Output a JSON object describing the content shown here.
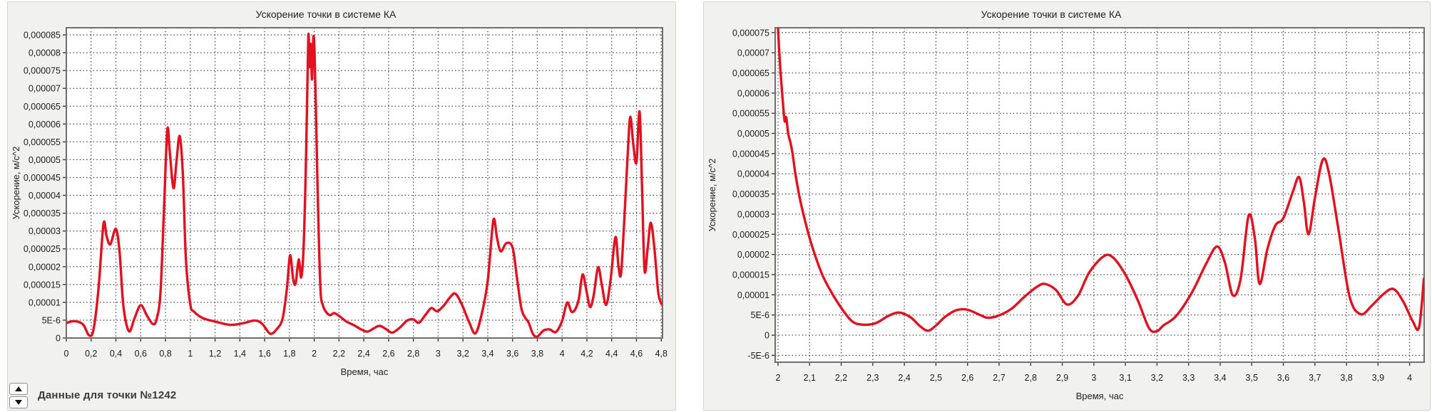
{
  "left_panel": {
    "point_label": "Данные для точки №1242"
  },
  "chart_data": [
    {
      "type": "line",
      "title": "Ускорение точки в системе КА",
      "xlabel": "Время, час",
      "ylabel": "Ускорение, м/с^2",
      "grid": "dotted, on",
      "legend": "none",
      "line_color": "#e3101f",
      "grid_color": "#474747",
      "plot_border_color": "#6f6f6f",
      "tick_color": "#3a3a3a",
      "text_color": "#1d1d1d",
      "plot_bg": "#ffffff",
      "note": "y values below are in units of 1e-6 m/s^2; x in hours",
      "xlim": [
        0,
        4.81
      ],
      "ylim": [
        0,
        87
      ],
      "x_tick_values": [
        0,
        0.2,
        0.4,
        0.6,
        0.8,
        1,
        1.2,
        1.4,
        1.6,
        1.8,
        2,
        2.2,
        2.4,
        2.6,
        2.8,
        3,
        3.2,
        3.4,
        3.6,
        3.8,
        4,
        4.2,
        4.4,
        4.6,
        4.8
      ],
      "x_tick_labels": [
        "0",
        "0,2",
        "0,4",
        "0,6",
        "0,8",
        "1",
        "1,2",
        "1,4",
        "1,6",
        "1,8",
        "2",
        "2,2",
        "2,4",
        "2,6",
        "2,8",
        "3",
        "3,2",
        "3,4",
        "3,6",
        "3,8",
        "4",
        "4,2",
        "4,4",
        "4,6",
        "4,8"
      ],
      "y_tick_values": [
        0,
        5,
        10,
        15,
        20,
        25,
        30,
        35,
        40,
        45,
        50,
        55,
        60,
        65,
        70,
        75,
        80,
        85
      ],
      "y_tick_labels": [
        "0",
        "5E-6",
        "0,00001",
        "0,000015",
        "0,00002",
        "0,000025",
        "0,00003",
        "0,000035",
        "0,00004",
        "0,000045",
        "0,00005",
        "0,000055",
        "0,00006",
        "0,000065",
        "0,00007",
        "0,000075",
        "0,00008",
        "0,000085"
      ],
      "layout": {
        "margins": {
          "l": 82,
          "t": 36,
          "r": 18,
          "b": 101
        }
      },
      "points": [
        [
          0,
          4.2
        ],
        [
          0.05,
          4.7
        ],
        [
          0.1,
          4.5
        ],
        [
          0.14,
          3.6
        ],
        [
          0.185,
          0.7
        ],
        [
          0.22,
          2.5
        ],
        [
          0.26,
          14
        ],
        [
          0.3,
          32
        ],
        [
          0.325,
          28.5
        ],
        [
          0.355,
          26.3
        ],
        [
          0.4,
          30.6
        ],
        [
          0.43,
          24
        ],
        [
          0.46,
          9
        ],
        [
          0.505,
          1.9
        ],
        [
          0.55,
          5.5
        ],
        [
          0.6,
          9.2
        ],
        [
          0.65,
          6.3
        ],
        [
          0.7,
          3.9
        ],
        [
          0.73,
          5.5
        ],
        [
          0.76,
          13
        ],
        [
          0.79,
          38
        ],
        [
          0.815,
          58.5
        ],
        [
          0.835,
          52
        ],
        [
          0.865,
          42
        ],
        [
          0.89,
          50
        ],
        [
          0.915,
          56.6
        ],
        [
          0.94,
          46
        ],
        [
          0.965,
          22
        ],
        [
          1.0,
          9.5
        ],
        [
          1.03,
          7.4
        ],
        [
          1.1,
          5.6
        ],
        [
          1.2,
          4.6
        ],
        [
          1.32,
          3.7
        ],
        [
          1.42,
          4.1
        ],
        [
          1.52,
          4.9
        ],
        [
          1.58,
          4.0
        ],
        [
          1.645,
          1.2
        ],
        [
          1.7,
          2.6
        ],
        [
          1.745,
          5.5
        ],
        [
          1.78,
          14
        ],
        [
          1.805,
          23.2
        ],
        [
          1.83,
          16.5
        ],
        [
          1.85,
          15.3
        ],
        [
          1.875,
          22
        ],
        [
          1.895,
          17
        ],
        [
          1.915,
          26
        ],
        [
          1.935,
          52
        ],
        [
          1.952,
          84.5
        ],
        [
          1.962,
          76
        ],
        [
          1.972,
          82.5
        ],
        [
          1.982,
          72.5
        ],
        [
          1.993,
          84.3
        ],
        [
          2.003,
          80
        ],
        [
          2.015,
          62
        ],
        [
          2.03,
          38
        ],
        [
          2.05,
          14
        ],
        [
          2.07,
          9.2
        ],
        [
          2.1,
          7.1
        ],
        [
          2.13,
          6.4
        ],
        [
          2.16,
          7.0
        ],
        [
          2.2,
          6.2
        ],
        [
          2.26,
          4.6
        ],
        [
          2.32,
          3.6
        ],
        [
          2.38,
          2.4
        ],
        [
          2.43,
          1.8
        ],
        [
          2.49,
          2.9
        ],
        [
          2.53,
          3.4
        ],
        [
          2.58,
          2.5
        ],
        [
          2.63,
          1.5
        ],
        [
          2.69,
          2.9
        ],
        [
          2.75,
          4.9
        ],
        [
          2.8,
          5.2
        ],
        [
          2.845,
          4.3
        ],
        [
          2.9,
          6.6
        ],
        [
          2.945,
          8.4
        ],
        [
          2.99,
          7.5
        ],
        [
          3.04,
          8.9
        ],
        [
          3.1,
          11.6
        ],
        [
          3.14,
          12.4
        ],
        [
          3.19,
          9.5
        ],
        [
          3.25,
          4.4
        ],
        [
          3.3,
          1.3
        ],
        [
          3.35,
          6.5
        ],
        [
          3.4,
          16
        ],
        [
          3.445,
          33
        ],
        [
          3.475,
          28
        ],
        [
          3.505,
          24.3
        ],
        [
          3.55,
          26.6
        ],
        [
          3.6,
          25.4
        ],
        [
          3.635,
          17
        ],
        [
          3.67,
          8.5
        ],
        [
          3.7,
          5.8
        ],
        [
          3.73,
          4.3
        ],
        [
          3.765,
          1.1
        ],
        [
          3.8,
          0.4
        ],
        [
          3.85,
          2.1
        ],
        [
          3.9,
          2.4
        ],
        [
          3.95,
          1.7
        ],
        [
          4.0,
          4.8
        ],
        [
          4.04,
          9.9
        ],
        [
          4.075,
          7.4
        ],
        [
          4.105,
          8.0
        ],
        [
          4.135,
          11
        ],
        [
          4.165,
          17.8
        ],
        [
          4.195,
          13.5
        ],
        [
          4.225,
          8.7
        ],
        [
          4.255,
          12
        ],
        [
          4.29,
          19.8
        ],
        [
          4.32,
          15
        ],
        [
          4.355,
          9.3
        ],
        [
          4.39,
          16
        ],
        [
          4.43,
          28.3
        ],
        [
          4.455,
          20
        ],
        [
          4.475,
          18
        ],
        [
          4.5,
          32
        ],
        [
          4.53,
          52
        ],
        [
          4.55,
          62
        ],
        [
          4.575,
          54
        ],
        [
          4.6,
          49.3
        ],
        [
          4.625,
          63.5
        ],
        [
          4.645,
          42
        ],
        [
          4.665,
          19
        ],
        [
          4.69,
          25
        ],
        [
          4.715,
          32.3
        ],
        [
          4.745,
          25
        ],
        [
          4.775,
          13
        ],
        [
          4.8,
          9.6
        ]
      ]
    },
    {
      "type": "line",
      "title": "Ускорение точки в системе КА",
      "xlabel": "Время, час",
      "ylabel": "Ускорение, м/с^2",
      "grid": "dotted, on",
      "legend": "none",
      "line_color": "#e3101f",
      "grid_color": "#474747",
      "plot_border_color": "#6f6f6f",
      "tick_color": "#3a3a3a",
      "text_color": "#1d1d1d",
      "plot_bg": "#ffffff",
      "note": "y values below are in units of 1e-6 m/s^2; x in hours",
      "xlim": [
        1.991,
        4.046
      ],
      "ylim": [
        -6.7,
        76.2
      ],
      "x_tick_values": [
        2,
        2.1,
        2.2,
        2.3,
        2.4,
        2.5,
        2.6,
        2.7,
        2.8,
        2.9,
        3,
        3.1,
        3.2,
        3.3,
        3.4,
        3.5,
        3.6,
        3.7,
        3.8,
        3.9,
        4
      ],
      "x_tick_labels": [
        "2",
        "2,1",
        "2,2",
        "2,3",
        "2,4",
        "2,5",
        "2,6",
        "2,7",
        "2,8",
        "2,9",
        "3",
        "3,1",
        "3,2",
        "3,3",
        "3,4",
        "3,5",
        "3,6",
        "3,7",
        "3,8",
        "3,9",
        "4"
      ],
      "y_tick_values": [
        -5,
        0,
        5,
        10,
        15,
        20,
        25,
        30,
        35,
        40,
        45,
        50,
        55,
        60,
        65,
        70,
        75
      ],
      "y_tick_labels": [
        "-5E-6",
        "0",
        "5E-6",
        "0,00001",
        "0,000015",
        "0,00002",
        "0,000025",
        "0,00003",
        "0,000035",
        "0,00004",
        "0,000045",
        "0,00005",
        "0,000055",
        "0,00006",
        "0,000065",
        "0,00007",
        "0,000075"
      ],
      "layout": {
        "margins": {
          "l": 100,
          "t": 36,
          "r": 8,
          "b": 67
        }
      },
      "points": [
        [
          2.0,
          76
        ],
        [
          2.004,
          70
        ],
        [
          2.01,
          63
        ],
        [
          2.016,
          57
        ],
        [
          2.021,
          53
        ],
        [
          2.026,
          54
        ],
        [
          2.032,
          50
        ],
        [
          2.04,
          47.5
        ],
        [
          2.046,
          45
        ],
        [
          2.055,
          40
        ],
        [
          2.07,
          33.5
        ],
        [
          2.09,
          27
        ],
        [
          2.11,
          21.5
        ],
        [
          2.14,
          15
        ],
        [
          2.17,
          10.5
        ],
        [
          2.2,
          6.8
        ],
        [
          2.235,
          3.4
        ],
        [
          2.27,
          2.6
        ],
        [
          2.31,
          3.0
        ],
        [
          2.35,
          4.8
        ],
        [
          2.385,
          5.6
        ],
        [
          2.42,
          4.4
        ],
        [
          2.45,
          2.2
        ],
        [
          2.475,
          1.1
        ],
        [
          2.5,
          2.4
        ],
        [
          2.53,
          4.6
        ],
        [
          2.565,
          6.2
        ],
        [
          2.6,
          6.3
        ],
        [
          2.64,
          5.0
        ],
        [
          2.665,
          4.3
        ],
        [
          2.7,
          4.9
        ],
        [
          2.74,
          6.6
        ],
        [
          2.78,
          9.5
        ],
        [
          2.82,
          12.0
        ],
        [
          2.845,
          12.7
        ],
        [
          2.88,
          11.2
        ],
        [
          2.915,
          7.6
        ],
        [
          2.95,
          9.8
        ],
        [
          2.985,
          15.5
        ],
        [
          3.03,
          19.5
        ],
        [
          3.06,
          19.3
        ],
        [
          3.1,
          15
        ],
        [
          3.14,
          8.5
        ],
        [
          3.175,
          1.7
        ],
        [
          3.2,
          1.0
        ],
        [
          3.22,
          2.4
        ],
        [
          3.26,
          4.7
        ],
        [
          3.31,
          10.5
        ],
        [
          3.355,
          17.6
        ],
        [
          3.39,
          22.0
        ],
        [
          3.415,
          18
        ],
        [
          3.44,
          9.9
        ],
        [
          3.465,
          14
        ],
        [
          3.49,
          29.6
        ],
        [
          3.51,
          24
        ],
        [
          3.525,
          12.7
        ],
        [
          3.55,
          21.5
        ],
        [
          3.575,
          27.2
        ],
        [
          3.6,
          29
        ],
        [
          3.63,
          35.5
        ],
        [
          3.65,
          39.2
        ],
        [
          3.665,
          33
        ],
        [
          3.68,
          25
        ],
        [
          3.7,
          34
        ],
        [
          3.725,
          43.5
        ],
        [
          3.745,
          40
        ],
        [
          3.775,
          26
        ],
        [
          3.81,
          9.5
        ],
        [
          3.845,
          5.2
        ],
        [
          3.88,
          7.3
        ],
        [
          3.92,
          10.4
        ],
        [
          3.95,
          11.4
        ],
        [
          3.98,
          8.3
        ],
        [
          4.01,
          3.4
        ],
        [
          4.03,
          2.0
        ],
        [
          4.045,
          14
        ]
      ]
    }
  ]
}
